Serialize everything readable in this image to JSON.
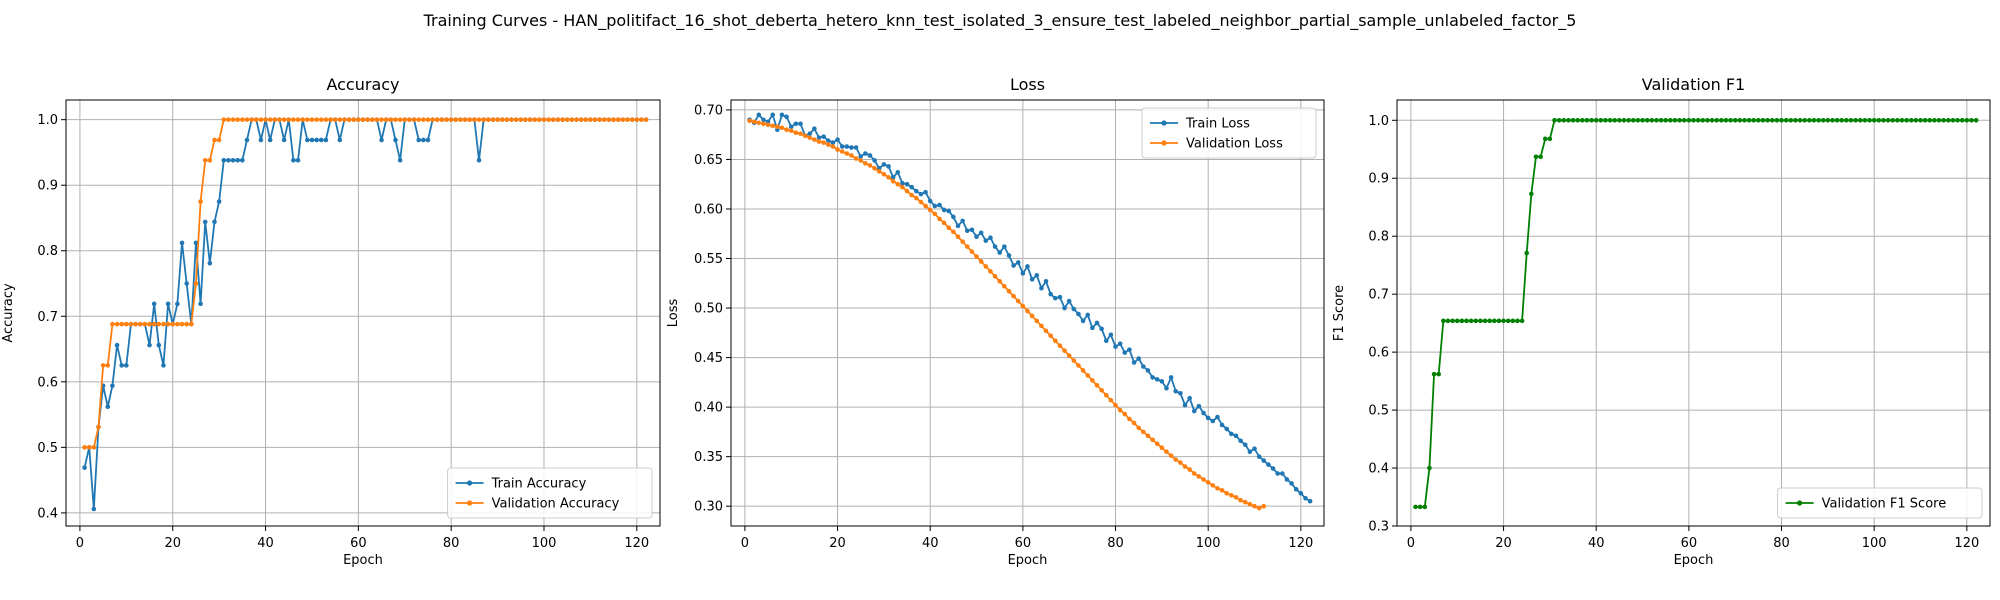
{
  "figure": {
    "suptitle": "Training Curves - HAN_politifact_16_shot_deberta_hetero_knn_test_isolated_3_ensure_test_labeled_neighbor_partial_sample_unlabeled_factor_5"
  },
  "colors": {
    "train": "#1f77b4",
    "validation": "#ff7f0e",
    "f1": "#008000",
    "grid": "#b0b0b0"
  },
  "chart_data": [
    {
      "type": "line",
      "title": "Accuracy",
      "xlabel": "Epoch",
      "ylabel": "Accuracy",
      "xlim": [
        -3,
        125
      ],
      "ylim": [
        0.38,
        1.03
      ],
      "xticks": [
        0,
        20,
        40,
        60,
        80,
        100,
        120
      ],
      "yticks": [
        0.4,
        0.5,
        0.6,
        0.7,
        0.8,
        0.9,
        1.0
      ],
      "ytick_labels": [
        "0.4",
        "0.5",
        "0.6",
        "0.7",
        "0.8",
        "0.9",
        "1.0"
      ],
      "grid": true,
      "legend_position": "lower-right",
      "series": [
        {
          "name": "Train Accuracy",
          "color": "#1f77b4",
          "x_start": 1,
          "values": [
            0.469,
            0.5,
            0.406,
            0.531,
            0.594,
            0.562,
            0.594,
            0.656,
            0.625,
            0.625,
            0.688,
            0.688,
            0.688,
            0.688,
            0.656,
            0.719,
            0.656,
            0.625,
            0.719,
            0.688,
            0.719,
            0.812,
            0.75,
            0.688,
            0.812,
            0.719,
            0.844,
            0.781,
            0.844,
            0.875,
            0.938,
            0.938,
            0.938,
            0.938,
            0.938,
            0.969,
            1.0,
            1.0,
            0.969,
            1.0,
            0.969,
            1.0,
            1.0,
            0.969,
            1.0,
            0.938,
            0.938,
            1.0,
            0.969,
            0.969,
            0.969,
            0.969,
            0.969,
            1.0,
            1.0,
            0.969,
            1.0,
            1.0,
            1.0,
            1.0,
            1.0,
            1.0,
            1.0,
            1.0,
            0.969,
            1.0,
            1.0,
            0.969,
            0.938,
            1.0,
            1.0,
            1.0,
            0.969,
            0.969,
            0.969,
            1.0,
            1.0,
            1.0,
            1.0,
            1.0,
            1.0,
            1.0,
            1.0,
            1.0,
            1.0,
            0.938,
            1.0,
            1.0,
            1.0,
            1.0,
            1.0,
            1.0,
            1.0,
            1.0,
            1.0,
            1.0,
            1.0,
            1.0,
            1.0,
            1.0,
            1.0,
            1.0,
            1.0,
            1.0,
            1.0,
            1.0,
            1.0,
            1.0,
            1.0,
            1.0,
            1.0,
            1.0,
            1.0,
            1.0,
            1.0,
            1.0,
            1.0,
            1.0,
            1.0,
            1.0,
            1.0,
            1.0
          ]
        },
        {
          "name": "Validation Accuracy",
          "color": "#ff7f0e",
          "x_start": 1,
          "values": [
            0.5,
            0.5,
            0.5,
            0.531,
            0.625,
            0.625,
            0.688,
            0.688,
            0.688,
            0.688,
            0.688,
            0.688,
            0.688,
            0.688,
            0.688,
            0.688,
            0.688,
            0.688,
            0.688,
            0.688,
            0.688,
            0.688,
            0.688,
            0.688,
            0.75,
            0.875,
            0.938,
            0.938,
            0.969,
            0.969,
            1.0,
            1.0,
            1.0,
            1.0,
            1.0,
            1.0,
            1.0,
            1.0,
            1.0,
            1.0,
            1.0,
            1.0,
            1.0,
            1.0,
            1.0,
            1.0,
            1.0,
            1.0,
            1.0,
            1.0,
            1.0,
            1.0,
            1.0,
            1.0,
            1.0,
            1.0,
            1.0,
            1.0,
            1.0,
            1.0,
            1.0,
            1.0,
            1.0,
            1.0,
            1.0,
            1.0,
            1.0,
            1.0,
            1.0,
            1.0,
            1.0,
            1.0,
            1.0,
            1.0,
            1.0,
            1.0,
            1.0,
            1.0,
            1.0,
            1.0,
            1.0,
            1.0,
            1.0,
            1.0,
            1.0,
            1.0,
            1.0,
            1.0,
            1.0,
            1.0,
            1.0,
            1.0,
            1.0,
            1.0,
            1.0,
            1.0,
            1.0,
            1.0,
            1.0,
            1.0,
            1.0,
            1.0,
            1.0,
            1.0,
            1.0,
            1.0,
            1.0,
            1.0,
            1.0,
            1.0,
            1.0,
            1.0,
            1.0,
            1.0,
            1.0,
            1.0,
            1.0,
            1.0,
            1.0,
            1.0,
            1.0,
            1.0
          ]
        }
      ]
    },
    {
      "type": "line",
      "title": "Loss",
      "xlabel": "Epoch",
      "ylabel": "Loss",
      "xlim": [
        -3,
        125
      ],
      "ylim": [
        0.28,
        0.71
      ],
      "xticks": [
        0,
        20,
        40,
        60,
        80,
        100,
        120
      ],
      "yticks": [
        0.3,
        0.35,
        0.4,
        0.45,
        0.5,
        0.55,
        0.6,
        0.65,
        0.7
      ],
      "ytick_labels": [
        "0.30",
        "0.35",
        "0.40",
        "0.45",
        "0.50",
        "0.55",
        "0.60",
        "0.65",
        "0.70"
      ],
      "grid": true,
      "legend_position": "top-right",
      "series": [
        {
          "name": "Train Loss",
          "color": "#1f77b4",
          "x_start": 1,
          "values": [
            0.69,
            0.687,
            0.695,
            0.69,
            0.688,
            0.695,
            0.68,
            0.695,
            0.693,
            0.683,
            0.686,
            0.686,
            0.674,
            0.676,
            0.681,
            0.672,
            0.673,
            0.669,
            0.667,
            0.67,
            0.663,
            0.663,
            0.662,
            0.662,
            0.653,
            0.656,
            0.654,
            0.649,
            0.641,
            0.645,
            0.643,
            0.632,
            0.637,
            0.626,
            0.625,
            0.622,
            0.618,
            0.615,
            0.617,
            0.608,
            0.603,
            0.604,
            0.599,
            0.598,
            0.592,
            0.583,
            0.588,
            0.578,
            0.579,
            0.572,
            0.576,
            0.568,
            0.571,
            0.562,
            0.556,
            0.562,
            0.553,
            0.543,
            0.546,
            0.535,
            0.542,
            0.529,
            0.533,
            0.52,
            0.527,
            0.514,
            0.51,
            0.511,
            0.5,
            0.507,
            0.499,
            0.494,
            0.487,
            0.493,
            0.48,
            0.485,
            0.479,
            0.467,
            0.473,
            0.461,
            0.464,
            0.455,
            0.458,
            0.445,
            0.449,
            0.441,
            0.437,
            0.43,
            0.428,
            0.426,
            0.419,
            0.43,
            0.416,
            0.414,
            0.402,
            0.409,
            0.396,
            0.401,
            0.394,
            0.389,
            0.386,
            0.39,
            0.382,
            0.378,
            0.373,
            0.371,
            0.366,
            0.362,
            0.355,
            0.358,
            0.35,
            0.346,
            0.342,
            0.338,
            0.333,
            0.333,
            0.327,
            0.323,
            0.317,
            0.313,
            0.308,
            0.305
          ]
        },
        {
          "name": "Validation Loss",
          "color": "#ff7f0e",
          "x_start": 1,
          "values": [
            0.689,
            0.688,
            0.687,
            0.686,
            0.685,
            0.684,
            0.683,
            0.682,
            0.68,
            0.679,
            0.677,
            0.676,
            0.674,
            0.672,
            0.67,
            0.668,
            0.667,
            0.665,
            0.663,
            0.66,
            0.658,
            0.656,
            0.654,
            0.651,
            0.649,
            0.646,
            0.644,
            0.641,
            0.638,
            0.635,
            0.632,
            0.628,
            0.625,
            0.622,
            0.618,
            0.614,
            0.611,
            0.607,
            0.603,
            0.599,
            0.595,
            0.59,
            0.586,
            0.581,
            0.577,
            0.572,
            0.567,
            0.562,
            0.557,
            0.552,
            0.547,
            0.542,
            0.537,
            0.532,
            0.527,
            0.522,
            0.517,
            0.512,
            0.507,
            0.502,
            0.497,
            0.492,
            0.487,
            0.482,
            0.477,
            0.472,
            0.467,
            0.462,
            0.457,
            0.452,
            0.447,
            0.442,
            0.437,
            0.432,
            0.427,
            0.422,
            0.417,
            0.412,
            0.407,
            0.402,
            0.397,
            0.393,
            0.388,
            0.384,
            0.379,
            0.375,
            0.371,
            0.367,
            0.363,
            0.359,
            0.355,
            0.351,
            0.347,
            0.344,
            0.34,
            0.337,
            0.333,
            0.33,
            0.327,
            0.324,
            0.321,
            0.318,
            0.316,
            0.313,
            0.311,
            0.309,
            0.306,
            0.304,
            0.302,
            0.3,
            0.298,
            0.3
          ]
        }
      ]
    },
    {
      "type": "line",
      "title": "Validation F1",
      "xlabel": "Epoch",
      "ylabel": "F1 Score",
      "xlim": [
        -3,
        125
      ],
      "ylim": [
        0.3,
        1.035
      ],
      "xticks": [
        0,
        20,
        40,
        60,
        80,
        100,
        120
      ],
      "yticks": [
        0.3,
        0.4,
        0.5,
        0.6,
        0.7,
        0.8,
        0.9,
        1.0
      ],
      "ytick_labels": [
        "0.3",
        "0.4",
        "0.5",
        "0.6",
        "0.7",
        "0.8",
        "0.9",
        "1.0"
      ],
      "grid": true,
      "legend_position": "lower-right",
      "series": [
        {
          "name": "Validation F1 Score",
          "color": "#008000",
          "x_start": 1,
          "values": [
            0.333,
            0.333,
            0.333,
            0.4,
            0.562,
            0.562,
            0.654,
            0.654,
            0.654,
            0.654,
            0.654,
            0.654,
            0.654,
            0.654,
            0.654,
            0.654,
            0.654,
            0.654,
            0.654,
            0.654,
            0.654,
            0.654,
            0.654,
            0.654,
            0.771,
            0.873,
            0.937,
            0.937,
            0.968,
            0.968,
            1.0,
            1.0,
            1.0,
            1.0,
            1.0,
            1.0,
            1.0,
            1.0,
            1.0,
            1.0,
            1.0,
            1.0,
            1.0,
            1.0,
            1.0,
            1.0,
            1.0,
            1.0,
            1.0,
            1.0,
            1.0,
            1.0,
            1.0,
            1.0,
            1.0,
            1.0,
            1.0,
            1.0,
            1.0,
            1.0,
            1.0,
            1.0,
            1.0,
            1.0,
            1.0,
            1.0,
            1.0,
            1.0,
            1.0,
            1.0,
            1.0,
            1.0,
            1.0,
            1.0,
            1.0,
            1.0,
            1.0,
            1.0,
            1.0,
            1.0,
            1.0,
            1.0,
            1.0,
            1.0,
            1.0,
            1.0,
            1.0,
            1.0,
            1.0,
            1.0,
            1.0,
            1.0,
            1.0,
            1.0,
            1.0,
            1.0,
            1.0,
            1.0,
            1.0,
            1.0,
            1.0,
            1.0,
            1.0,
            1.0,
            1.0,
            1.0,
            1.0,
            1.0,
            1.0,
            1.0,
            1.0,
            1.0,
            1.0,
            1.0,
            1.0,
            1.0,
            1.0,
            1.0,
            1.0,
            1.0,
            1.0,
            1.0
          ]
        }
      ]
    }
  ]
}
